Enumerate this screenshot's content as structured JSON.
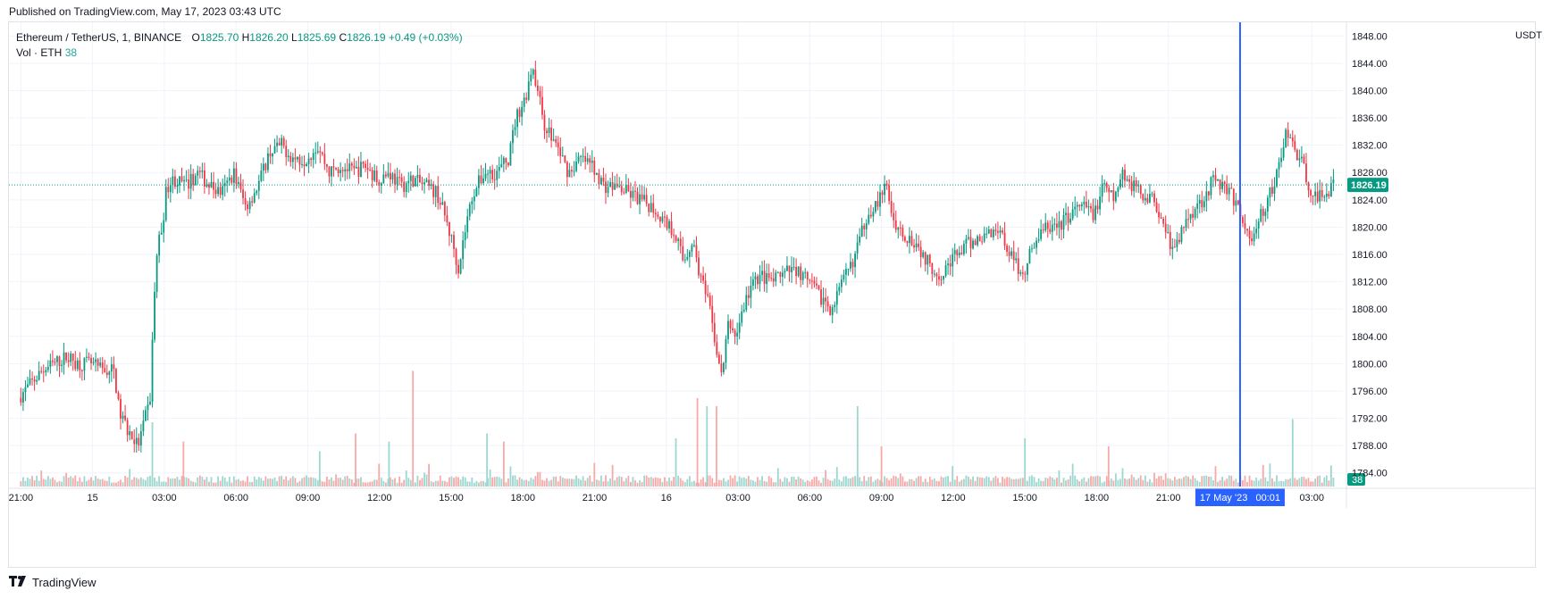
{
  "header": {
    "published": "Published on TradingView.com, May 17, 2023 03:43 UTC"
  },
  "legend": {
    "symbol": "Ethereum / TetherUS, 1, BINANCE",
    "o_label": "O",
    "o": "1825.70",
    "h_label": "H",
    "h": "1826.20",
    "l_label": "L",
    "l": "1825.69",
    "c_label": "C",
    "c": "1826.19",
    "change": "+0.49 (+0.03%)",
    "vol_label": "Vol · ETH",
    "vol": "38"
  },
  "axis": {
    "unit": "USDT"
  },
  "footer": {
    "brand": "TradingView"
  },
  "colors": {
    "up": "#089981",
    "down": "#f23645",
    "vol_up": "#9dd7cf",
    "vol_down": "#f7a9a7",
    "crosshair": "#2962ff"
  },
  "chart_data": {
    "type": "candlestick",
    "symbol": "ETH/USDT",
    "interval": "1",
    "ylim": [
      1782,
      1850
    ],
    "y_ticks": [
      "1784.00",
      "1788.00",
      "1792.00",
      "1796.00",
      "1800.00",
      "1804.00",
      "1808.00",
      "1812.00",
      "1816.00",
      "1820.00",
      "1824.00",
      "1828.00",
      "1832.00",
      "1836.00",
      "1840.00",
      "1844.00",
      "1848.00"
    ],
    "y_tick_values": [
      1784,
      1788,
      1792,
      1796,
      1800,
      1804,
      1808,
      1812,
      1816,
      1820,
      1824,
      1828,
      1832,
      1836,
      1840,
      1844,
      1848
    ],
    "x_ticks": [
      "21:00",
      "15",
      "03:00",
      "06:00",
      "09:00",
      "12:00",
      "15:00",
      "18:00",
      "21:00",
      "16",
      "03:00",
      "06:00",
      "09:00",
      "12:00",
      "15:00",
      "18:00",
      "21:00",
      "03:00"
    ],
    "x_tick_hours": [
      0,
      3,
      6,
      9,
      12,
      15,
      18,
      21,
      24,
      27,
      30,
      33,
      36,
      39,
      42,
      45,
      48,
      54
    ],
    "x_range_hours": [
      -0.5,
      55.3
    ],
    "last_price": "1826.19",
    "last_price_value": 1826.19,
    "last_volume": "38",
    "crosshair_label": "17 May '23   00:01",
    "crosshair_hour": 51.0,
    "price_path": [
      [
        0,
        1795
      ],
      [
        0.5,
        1797
      ],
      [
        1,
        1799
      ],
      [
        1.5,
        1800
      ],
      [
        2,
        1801
      ],
      [
        2.5,
        1800
      ],
      [
        3,
        1800
      ],
      [
        3.5,
        1799
      ],
      [
        4,
        1799
      ],
      [
        4.2,
        1793
      ],
      [
        4.6,
        1790
      ],
      [
        5,
        1788
      ],
      [
        5.3,
        1792
      ],
      [
        5.5,
        1795
      ],
      [
        5.65,
        1808
      ],
      [
        5.8,
        1817
      ],
      [
        6,
        1820
      ],
      [
        6.2,
        1826
      ],
      [
        6.5,
        1827
      ],
      [
        7,
        1826
      ],
      [
        7.5,
        1828
      ],
      [
        8,
        1826
      ],
      [
        8.5,
        1825
      ],
      [
        9,
        1828
      ],
      [
        9.5,
        1823
      ],
      [
        10,
        1826
      ],
      [
        10.5,
        1831
      ],
      [
        11,
        1832
      ],
      [
        11.5,
        1830
      ],
      [
        12,
        1830
      ],
      [
        12.5,
        1832
      ],
      [
        13,
        1828
      ],
      [
        13.5,
        1829
      ],
      [
        14,
        1828
      ],
      [
        14.5,
        1829
      ],
      [
        15,
        1827
      ],
      [
        15.5,
        1828
      ],
      [
        16,
        1826
      ],
      [
        16.5,
        1827
      ],
      [
        17,
        1826
      ],
      [
        17.5,
        1825
      ],
      [
        17.8,
        1822
      ],
      [
        18.2,
        1817
      ],
      [
        18.4,
        1814
      ],
      [
        18.7,
        1820
      ],
      [
        19,
        1825
      ],
      [
        19.5,
        1828
      ],
      [
        20,
        1828
      ],
      [
        20.5,
        1830
      ],
      [
        20.8,
        1836
      ],
      [
        21.2,
        1839
      ],
      [
        21.5,
        1844
      ],
      [
        21.7,
        1840
      ],
      [
        22,
        1835
      ],
      [
        22.5,
        1832
      ],
      [
        23,
        1828
      ],
      [
        23.5,
        1830
      ],
      [
        24,
        1829
      ],
      [
        24.5,
        1826
      ],
      [
        25,
        1826
      ],
      [
        25.5,
        1825
      ],
      [
        26,
        1824
      ],
      [
        26.5,
        1823
      ],
      [
        27,
        1821
      ],
      [
        27.5,
        1819
      ],
      [
        27.8,
        1815
      ],
      [
        28.2,
        1818
      ],
      [
        28.5,
        1813
      ],
      [
        28.9,
        1808
      ],
      [
        29.2,
        1802
      ],
      [
        29.4,
        1798
      ],
      [
        29.7,
        1806
      ],
      [
        30,
        1804
      ],
      [
        30.3,
        1808
      ],
      [
        30.6,
        1811
      ],
      [
        31,
        1813
      ],
      [
        31.5,
        1812
      ],
      [
        32,
        1813
      ],
      [
        32.5,
        1814
      ],
      [
        33,
        1812
      ],
      [
        33.5,
        1810
      ],
      [
        34,
        1808
      ],
      [
        34.5,
        1812
      ],
      [
        35,
        1816
      ],
      [
        35.5,
        1822
      ],
      [
        36,
        1824
      ],
      [
        36.3,
        1826
      ],
      [
        36.6,
        1821
      ],
      [
        37,
        1819
      ],
      [
        37.5,
        1818
      ],
      [
        38,
        1815
      ],
      [
        38.5,
        1813
      ],
      [
        39,
        1815
      ],
      [
        39.5,
        1817
      ],
      [
        40,
        1818
      ],
      [
        40.5,
        1819
      ],
      [
        41,
        1820
      ],
      [
        41.5,
        1816
      ],
      [
        42,
        1813
      ],
      [
        42.5,
        1818
      ],
      [
        43,
        1820
      ],
      [
        43.5,
        1820
      ],
      [
        44,
        1822
      ],
      [
        44.5,
        1823
      ],
      [
        45,
        1822
      ],
      [
        45.4,
        1826
      ],
      [
        45.8,
        1824
      ],
      [
        46.2,
        1828
      ],
      [
        46.6,
        1826
      ],
      [
        47,
        1825
      ],
      [
        47.5,
        1824
      ],
      [
        48,
        1820
      ],
      [
        48.3,
        1816
      ],
      [
        48.6,
        1819
      ],
      [
        49,
        1822
      ],
      [
        49.5,
        1824
      ],
      [
        50,
        1827
      ],
      [
        50.5,
        1826
      ],
      [
        51,
        1823
      ],
      [
        51.3,
        1820
      ],
      [
        51.6,
        1818
      ],
      [
        52,
        1822
      ],
      [
        52.5,
        1826
      ],
      [
        52.8,
        1830
      ],
      [
        53,
        1834
      ],
      [
        53.3,
        1832
      ],
      [
        53.6,
        1830
      ],
      [
        54,
        1826
      ],
      [
        54.3,
        1824
      ],
      [
        54.6,
        1825
      ],
      [
        55,
        1826
      ]
    ],
    "volume_spikes": [
      [
        5.5,
        0.4
      ],
      [
        14.0,
        0.33
      ],
      [
        15.4,
        0.28
      ],
      [
        16.4,
        0.72
      ],
      [
        19.5,
        0.33
      ],
      [
        20.2,
        0.28
      ],
      [
        27.4,
        0.3
      ],
      [
        28.3,
        0.55
      ],
      [
        28.7,
        0.5
      ],
      [
        29.1,
        0.5
      ],
      [
        35.0,
        0.5
      ],
      [
        36.0,
        0.25
      ],
      [
        42.0,
        0.3
      ],
      [
        45.5,
        0.25
      ],
      [
        53.2,
        0.42
      ],
      [
        6.8,
        0.28
      ],
      [
        12.5,
        0.22
      ]
    ]
  }
}
